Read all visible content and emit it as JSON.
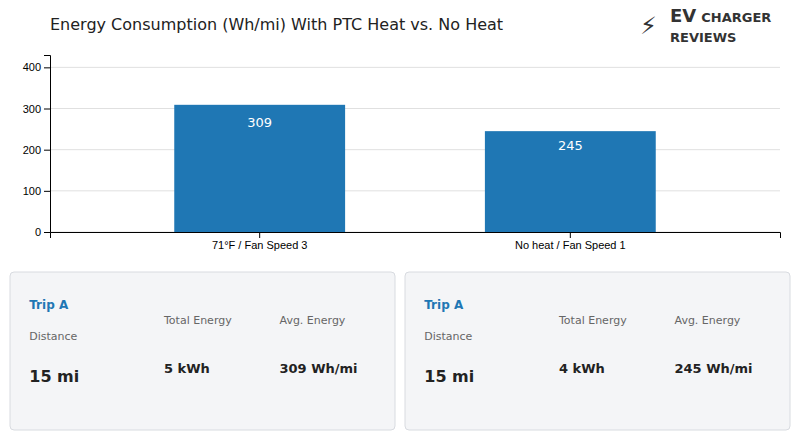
{
  "chart_data": {
    "type": "bar",
    "title": "Energy Consumption (Wh/mi) With PTC Heat vs. No Heat",
    "categories": [
      "71°F / Fan Speed 3",
      "No heat / Fan Speed 1"
    ],
    "values": [
      309,
      245
    ],
    "ylim": [
      0,
      430
    ],
    "yticks": [
      0,
      100,
      200,
      300,
      400
    ],
    "grid": true,
    "data_labels": true,
    "annotations": {
      "logo": [
        "⚡",
        "EV",
        "CHARGER",
        "REVIEWS"
      ],
      "panels": [
        {
          "trip_label": "Trip A",
          "distance_label": "Distance",
          "distance_value": "15 mi",
          "total_energy_label": "Total Energy",
          "total_energy_value": "5 kWh",
          "avg_energy_label": "Avg. Energy",
          "avg_energy_value": "309 Wh/mi"
        },
        {
          "trip_label": "Trip A",
          "distance_label": "Distance",
          "distance_value": "15 mi",
          "total_energy_label": "Total Energy",
          "total_energy_value": "4 kWh",
          "avg_energy_label": "Avg. Energy",
          "avg_energy_value": "245 Wh/mi"
        }
      ]
    }
  }
}
